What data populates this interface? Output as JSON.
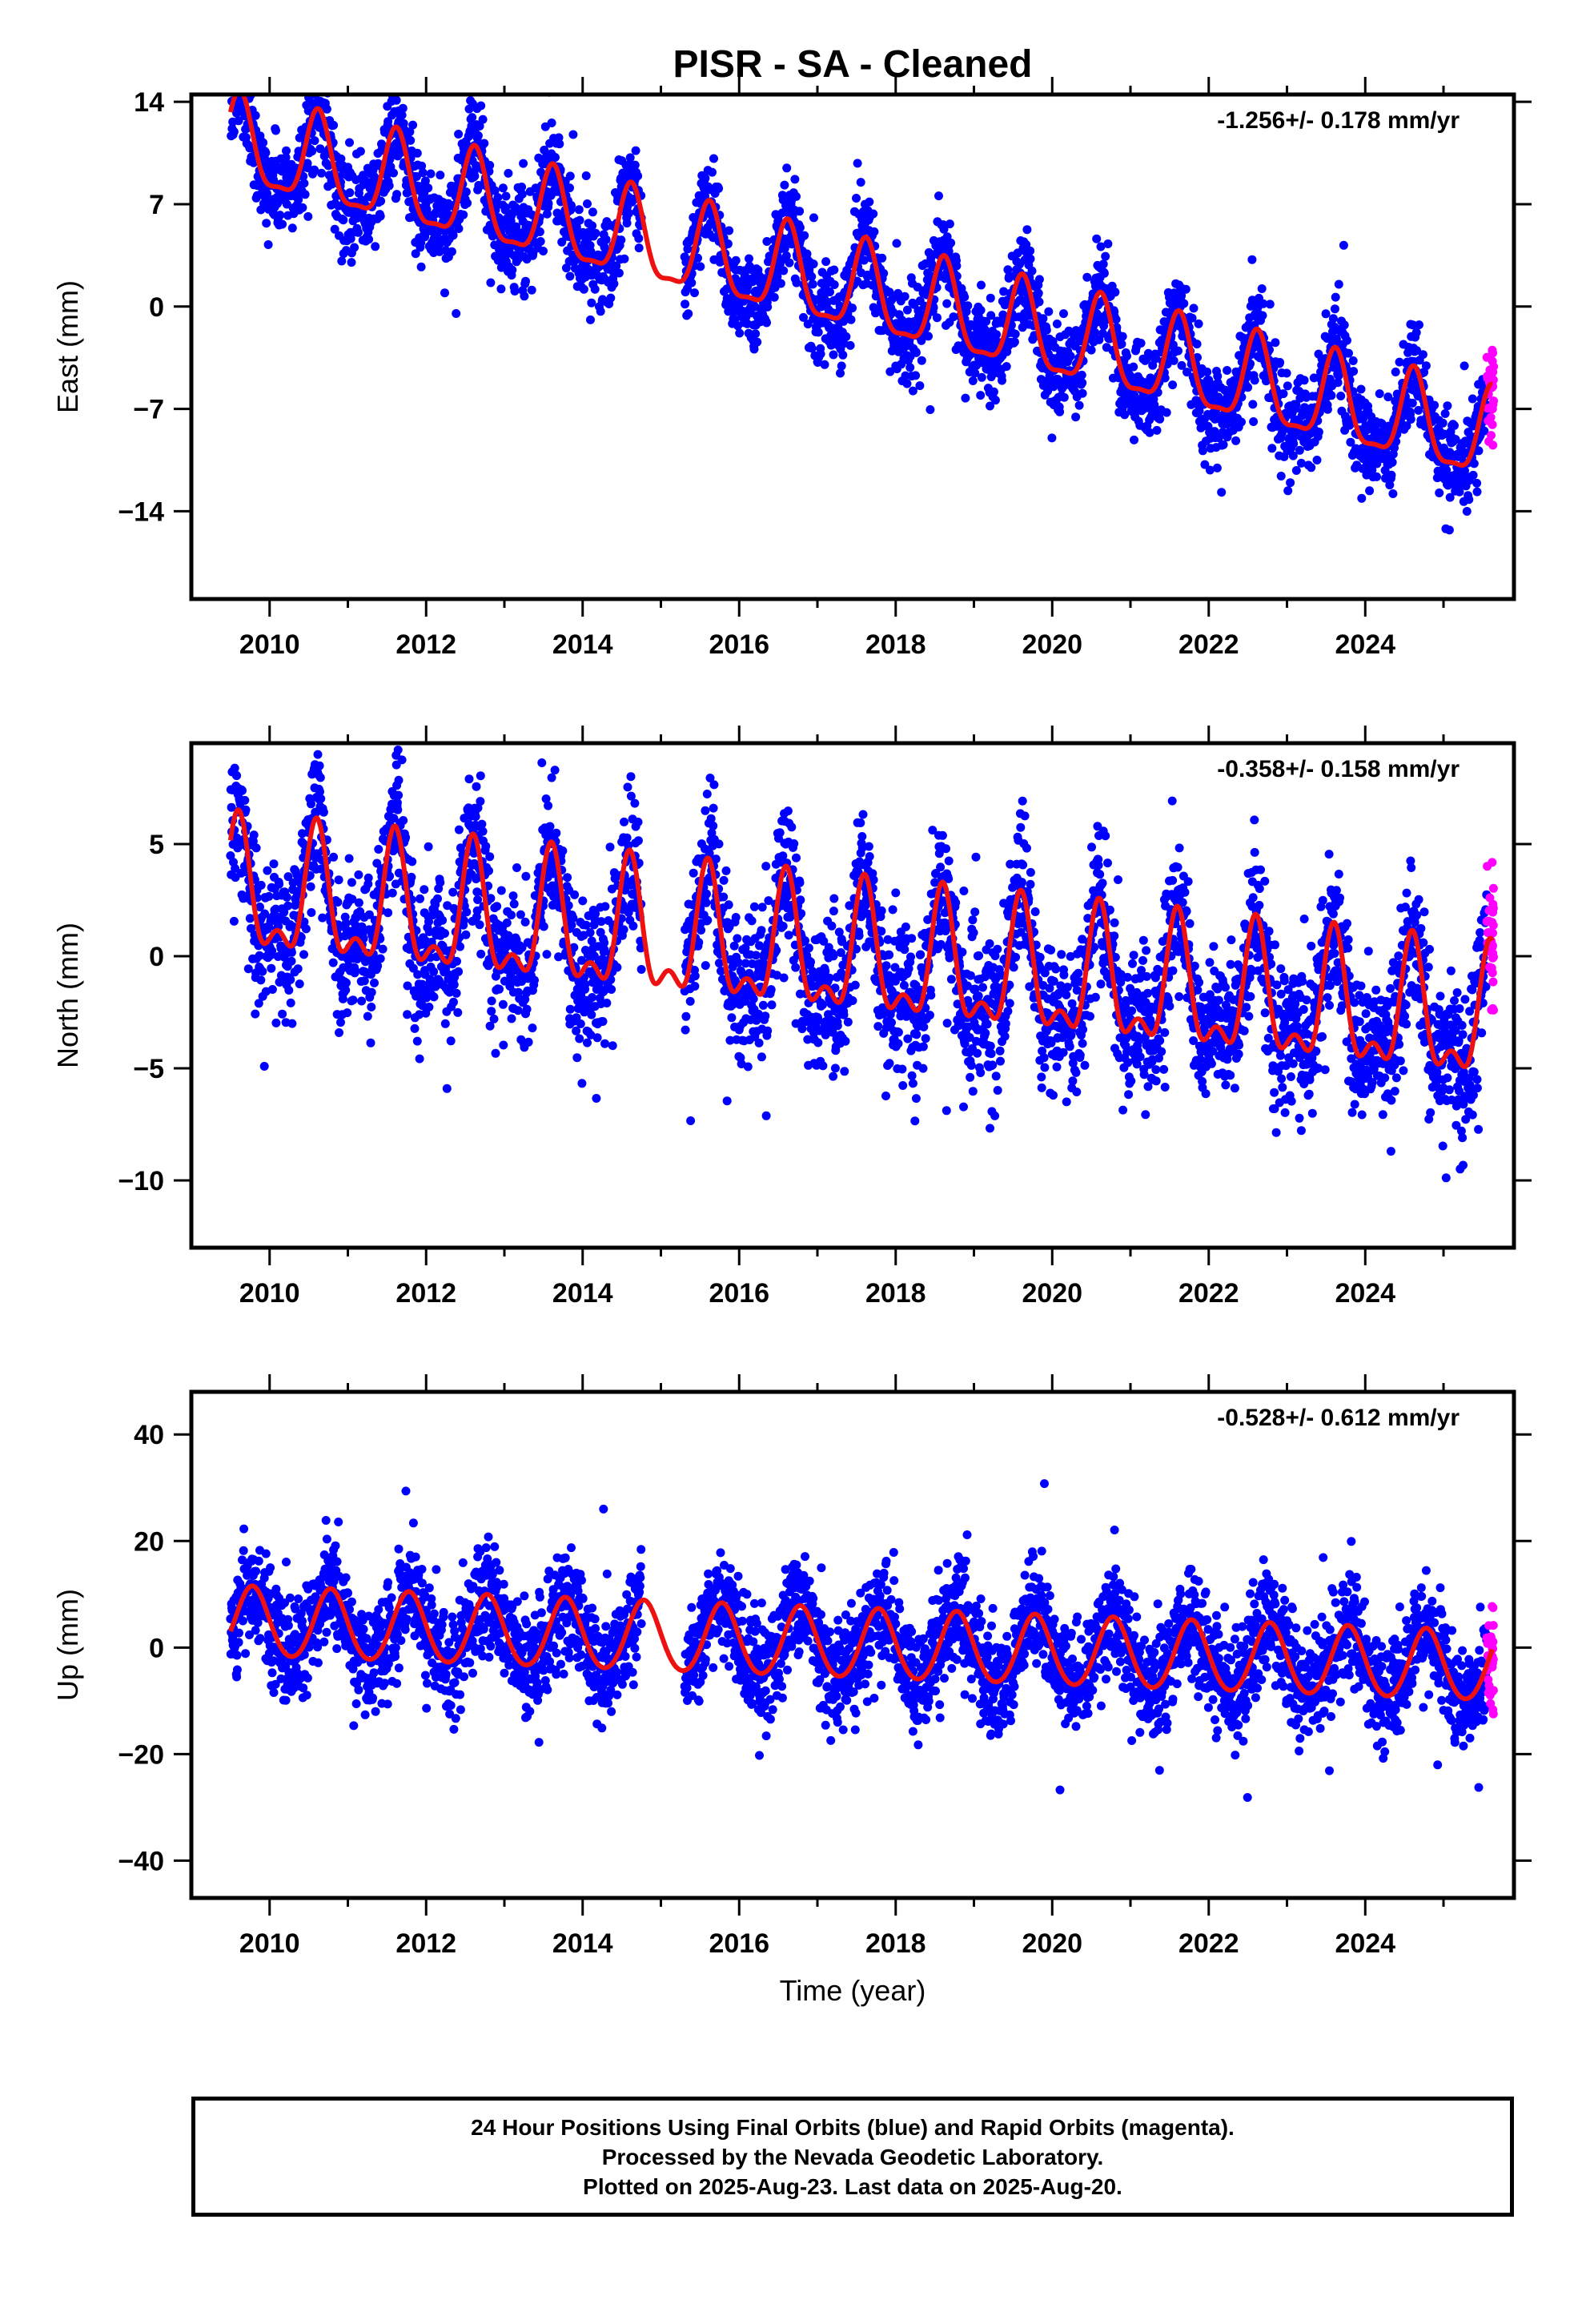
{
  "title": "PISR  - SA - Cleaned",
  "footer": {
    "line1": "24 Hour Positions Using Final Orbits (blue) and Rapid Orbits (magenta).",
    "line2": "Processed by the Nevada Geodetic Laboratory.",
    "line3": "Plotted on 2025-Aug-23. Last data on 2025-Aug-20."
  },
  "colors": {
    "final_orbits": "#0000ff",
    "rapid_orbits": "#ff00ff",
    "model_fit": "#ee1111"
  },
  "chart_data": [
    {
      "type": "scatter",
      "component": "east",
      "ylabel": "East (mm)",
      "xlabel": "",
      "rate_label": "-1.256+/- 0.178 mm/yr",
      "xlim": [
        2009.0,
        2025.9
      ],
      "ylim": [
        -20,
        14.5
      ],
      "xticks": [
        2010,
        2012,
        2014,
        2016,
        2018,
        2020,
        2022,
        2024
      ],
      "yticks": [
        14,
        7,
        0,
        -7,
        -14
      ],
      "ytick_labels": [
        "14",
        "7",
        "0",
        "−7",
        "−14"
      ],
      "grid": false,
      "data_range": [
        2009.5,
        2025.63
      ],
      "rapid_start": 2025.55,
      "gaps": [
        [
          2014.75,
          2015.3
        ]
      ],
      "model": {
        "trend_ref_year": 2017.5,
        "value_at_ref": 1.0,
        "rate_mm_per_yr": -1.256,
        "annual_amplitude": 3.0,
        "annual_peak_doy_fraction": 0.62,
        "semiannual_amplitude": 0.9,
        "offsets": [
          {
            "year": 2010.9,
            "step": 0
          },
          {
            "year": 2016.4,
            "step": 0
          }
        ]
      },
      "scatter_noise": 1.6,
      "series": [
        {
          "name": "Final Orbits (blue)"
        },
        {
          "name": "Rapid Orbits (magenta)"
        }
      ]
    },
    {
      "type": "scatter",
      "component": "north",
      "ylabel": "North (mm)",
      "xlabel": "",
      "rate_label": "-0.358+/- 0.158 mm/yr",
      "xlim": [
        2009.0,
        2025.9
      ],
      "ylim": [
        -13,
        9.5
      ],
      "xticks": [
        2010,
        2012,
        2014,
        2016,
        2018,
        2020,
        2022,
        2024
      ],
      "yticks": [
        5,
        0,
        -5,
        -10
      ],
      "ytick_labels": [
        "5",
        "0",
        "−5",
        "−10"
      ],
      "grid": false,
      "data_range": [
        2009.5,
        2025.63
      ],
      "rapid_start": 2025.55,
      "gaps": [
        [
          2014.75,
          2015.3
        ]
      ],
      "model": {
        "trend_ref_year": 2017.5,
        "value_at_ref": -0.2,
        "rate_mm_per_yr": -0.358,
        "annual_amplitude": 2.6,
        "annual_peak_doy_fraction": 0.6,
        "semiannual_amplitude": 1.3,
        "offsets": []
      },
      "scatter_noise": 1.6,
      "series": [
        {
          "name": "Final Orbits (blue)"
        },
        {
          "name": "Rapid Orbits (magenta)"
        }
      ]
    },
    {
      "type": "scatter",
      "component": "up",
      "ylabel": "Up (mm)",
      "xlabel": "Time (year)",
      "rate_label": "-0.528+/- 0.612 mm/yr",
      "xlim": [
        2009.0,
        2025.9
      ],
      "ylim": [
        -47,
        48
      ],
      "xticks": [
        2010,
        2012,
        2014,
        2016,
        2018,
        2020,
        2022,
        2024
      ],
      "yticks": [
        40,
        20,
        0,
        -20,
        -40
      ],
      "ytick_labels": [
        "40",
        "20",
        "0",
        "−20",
        "−40"
      ],
      "grid": false,
      "data_range": [
        2009.5,
        2025.63
      ],
      "rapid_start": 2025.55,
      "gaps": [
        [
          2014.75,
          2015.3
        ]
      ],
      "model": {
        "trend_ref_year": 2017.5,
        "value_at_ref": 0.5,
        "rate_mm_per_yr": -0.528,
        "annual_amplitude": 6.5,
        "annual_peak_doy_fraction": 0.78,
        "semiannual_amplitude": 0.5,
        "offsets": []
      },
      "scatter_noise": 5.0,
      "series": [
        {
          "name": "Final Orbits (blue)"
        },
        {
          "name": "Rapid Orbits (magenta)"
        }
      ]
    }
  ]
}
